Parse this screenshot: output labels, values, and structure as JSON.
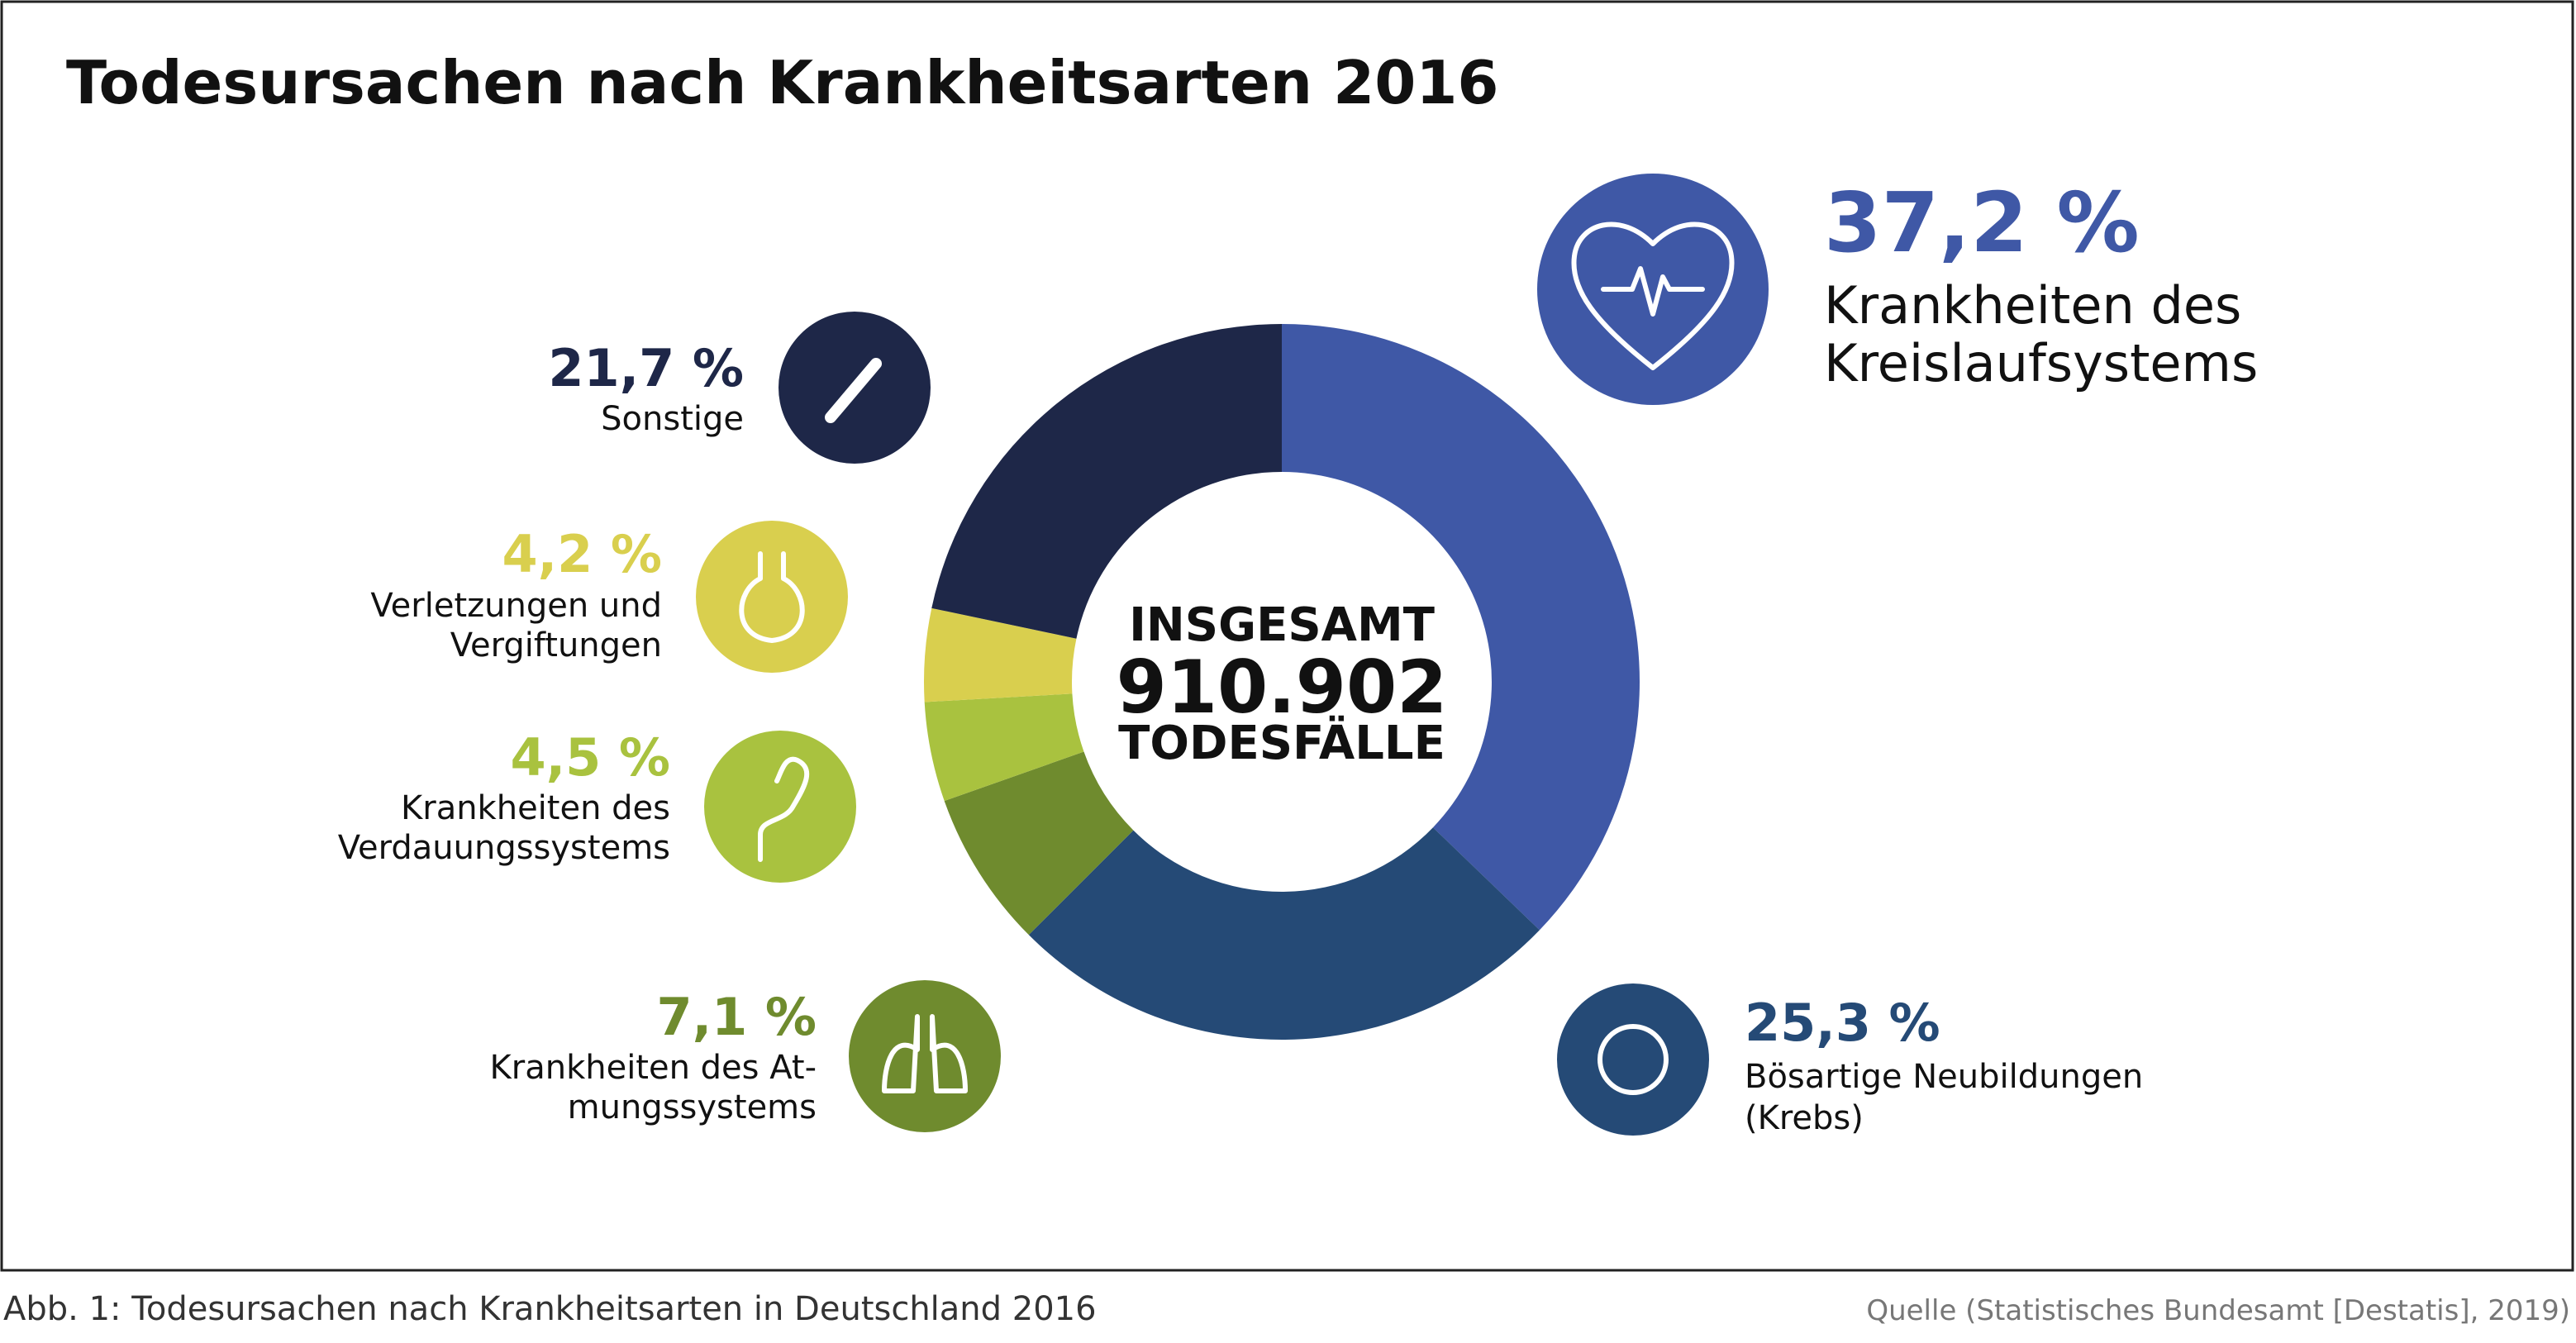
{
  "chart_data": {
    "type": "donut",
    "title": "Todesursachen nach Krankheitsarten 2016",
    "categories": [
      "Krankheiten des\nKreislaufsystems",
      "Bösartige Neubildungen\n(Krebs)",
      "Krankheiten des At-\nmungssystems",
      "Krankheiten des\nVerdauungssystems",
      "Verletzungen und\nVergiftungen",
      "Sonstige"
    ],
    "values": [
      37.2,
      25.3,
      7.1,
      4.5,
      4.2,
      21.7
    ],
    "value_labels": [
      "37,2 %",
      "25,3 %",
      "7,1 %",
      "4,5 %",
      "4,2 %",
      "21,7 %"
    ],
    "colors": [
      "#3f58a6",
      "#254a76",
      "#6f8b2e",
      "#a9c23f",
      "#d9cf4e",
      "#1e2748"
    ],
    "center_top": "INSGESAMT",
    "total": {
      "value": 910902,
      "label": "910.902"
    },
    "center_bottom": "TODESFÄLLE",
    "caption": "Abb. 1: Todesursachen nach Krankheitsarten in Deutschland 2016",
    "source": "Quelle (Statistisches Bundesamt [Destatis], 2019)"
  }
}
